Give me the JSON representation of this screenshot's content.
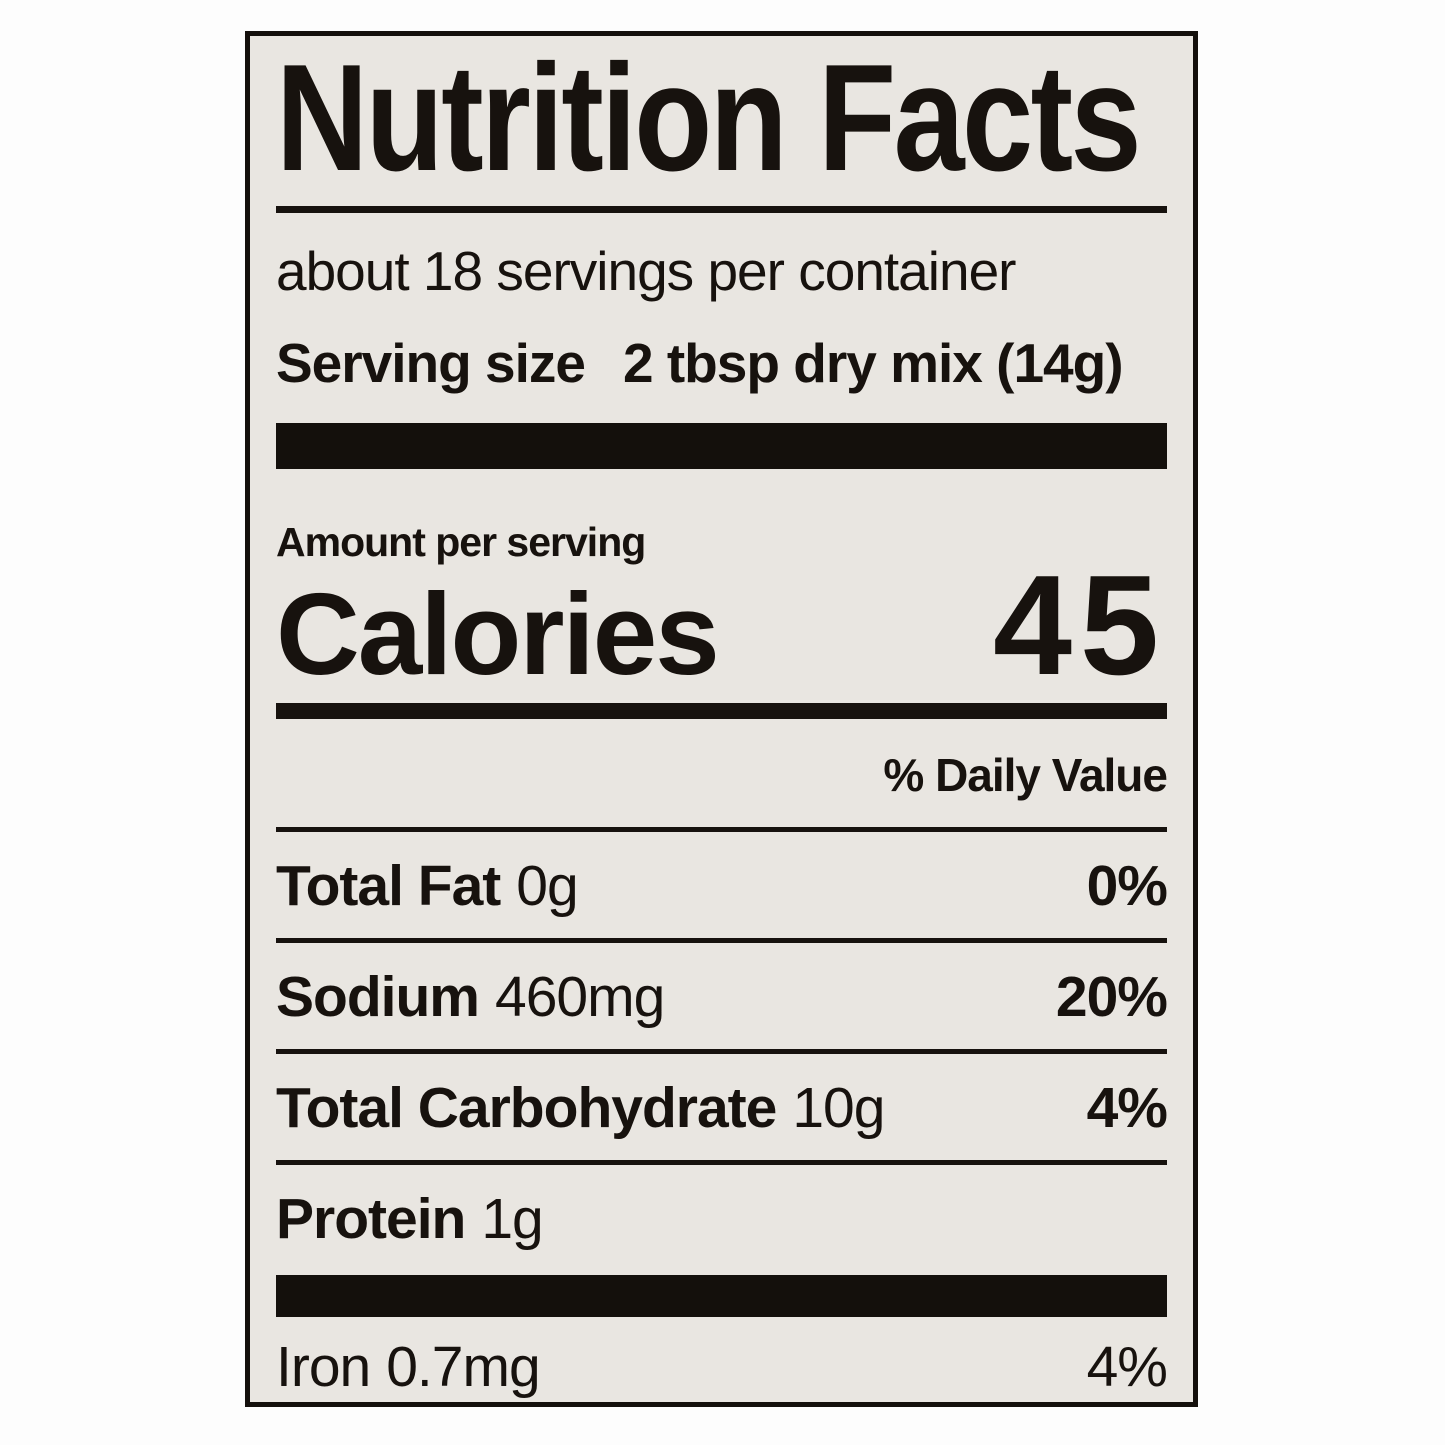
{
  "label": {
    "title": "Nutrition Facts",
    "servings_per_container": "about 18 servings per container",
    "serving_size": {
      "label": "Serving size",
      "value": "2 tbsp dry mix (14g)"
    },
    "amount_per_serving": "Amount per serving",
    "calories": {
      "label": "Calories",
      "value": "45"
    },
    "daily_value_header": "% Daily Value",
    "nutrients": [
      {
        "name": "Total Fat",
        "amount": "0g",
        "dv": "0%"
      },
      {
        "name": "Sodium",
        "amount": "460mg",
        "dv": "20%"
      },
      {
        "name": "Total Carbohydrate",
        "amount": "10g",
        "dv": "4%"
      },
      {
        "name": "Protein",
        "amount": "1g",
        "dv": ""
      }
    ],
    "micronutrients": [
      {
        "name": "Iron",
        "amount": "0.7mg",
        "dv": "4%"
      }
    ],
    "colors": {
      "label_background": "#e9e6e1",
      "text": "#17120e",
      "page_background": "#fdfdfd"
    }
  }
}
